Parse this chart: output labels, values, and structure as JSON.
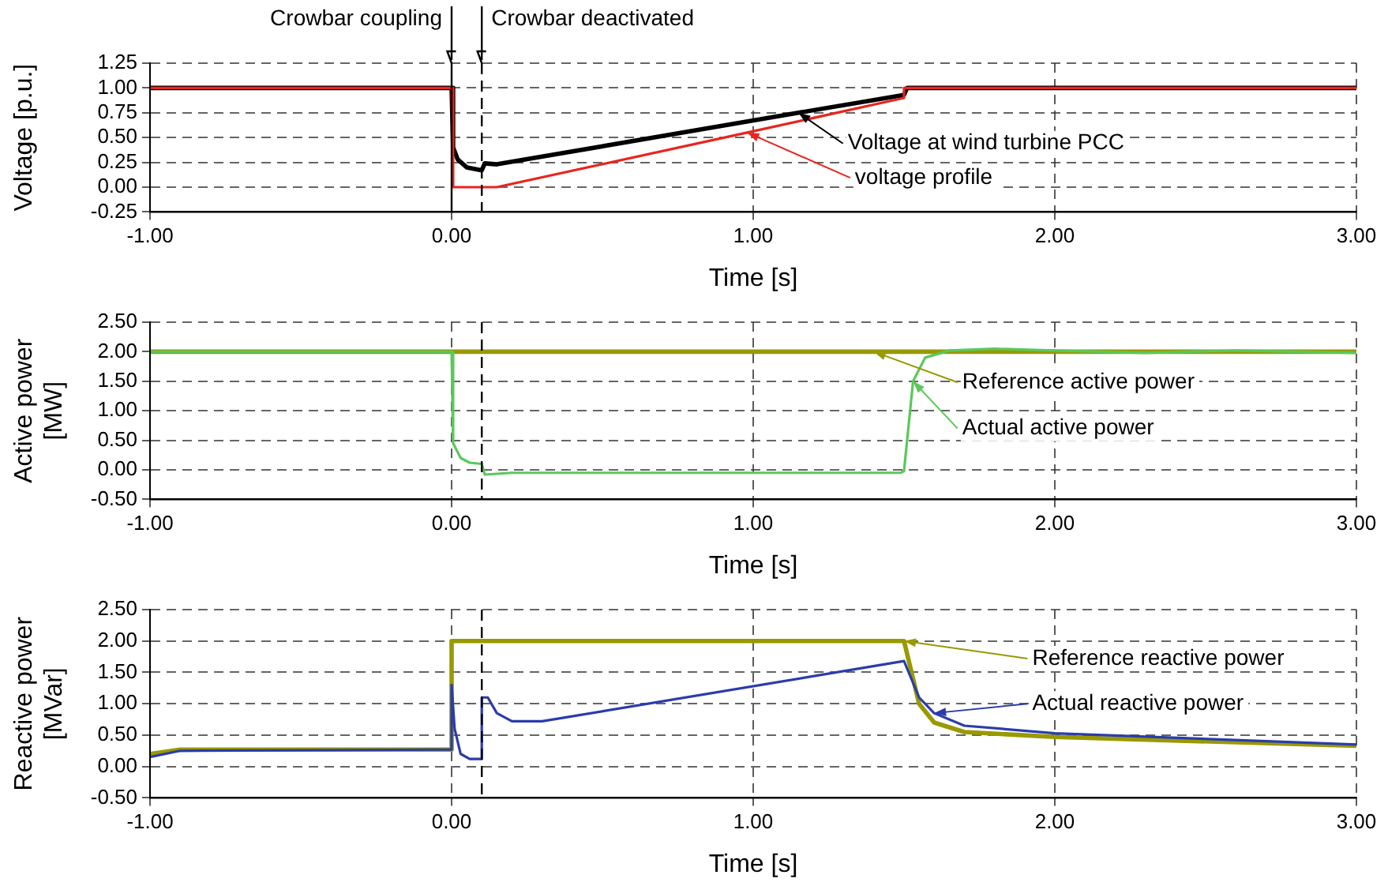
{
  "chart_data": [
    {
      "type": "line",
      "xlabel": "Time [s]",
      "ylabel": "Voltage [p.u.]",
      "grid": true,
      "xlim": [
        -1,
        3
      ],
      "xticks": [
        {
          "value": -1,
          "label": "-1.00"
        },
        {
          "value": 0,
          "label": "0.00"
        },
        {
          "value": 1,
          "label": "1.00"
        },
        {
          "value": 2,
          "label": "2.00"
        },
        {
          "value": 3,
          "label": "3.00"
        }
      ],
      "ylim": [
        -0.25,
        1.25
      ],
      "yticks": [
        {
          "value": -0.25,
          "label": "-0.25"
        },
        {
          "value": 0,
          "label": "0.00"
        },
        {
          "value": 0.25,
          "label": "0.25"
        },
        {
          "value": 0.5,
          "label": "0.50"
        },
        {
          "value": 0.75,
          "label": "0.75"
        },
        {
          "value": 1,
          "label": "1.00"
        },
        {
          "value": 1.25,
          "label": "1.25"
        }
      ],
      "ref_lines": [
        {
          "axis": "x",
          "value": 0,
          "label": "Crowbar coupling"
        },
        {
          "axis": "x",
          "value": 0.1,
          "label": "Crowbar deactivated",
          "line_style": "dashed"
        }
      ],
      "series": [
        {
          "name": "Voltage at wind turbine PCC",
          "color": "#000000",
          "x": [
            -1,
            0,
            0.005,
            0.02,
            0.05,
            0.1,
            0.11,
            0.15,
            1.15,
            1.5,
            1.51,
            3
          ],
          "values": [
            1,
            1,
            0.4,
            0.28,
            0.2,
            0.17,
            0.24,
            0.23,
            0.75,
            0.93,
            1,
            1
          ]
        },
        {
          "name": "voltage profile",
          "color": "#e8251f",
          "x": [
            -1,
            0,
            0.005,
            0.15,
            0.98,
            1.5,
            1.5,
            3
          ],
          "values": [
            1,
            1,
            0,
            0,
            0.55,
            0.9,
            1,
            1
          ]
        }
      ]
    },
    {
      "type": "line",
      "xlabel": "Time [s]",
      "ylabel": "Active power [MW]",
      "grid": true,
      "xlim": [
        -1,
        3
      ],
      "xticks": [
        {
          "value": -1,
          "label": "-1.00"
        },
        {
          "value": 0,
          "label": "0.00"
        },
        {
          "value": 1,
          "label": "1.00"
        },
        {
          "value": 2,
          "label": "2.00"
        },
        {
          "value": 3,
          "label": "3.00"
        }
      ],
      "ylim": [
        -0.5,
        2.5
      ],
      "yticks": [
        {
          "value": -0.5,
          "label": "-0.50"
        },
        {
          "value": 0,
          "label": "0.00"
        },
        {
          "value": 0.5,
          "label": "0.50"
        },
        {
          "value": 1,
          "label": "1.00"
        },
        {
          "value": 1.5,
          "label": "1.50"
        },
        {
          "value": 2,
          "label": "2.00"
        },
        {
          "value": 2.5,
          "label": "2.50"
        }
      ],
      "ref_lines": [
        {
          "axis": "x",
          "value": 0.1,
          "line_style": "dashed"
        }
      ],
      "series": [
        {
          "name": "Reference active power",
          "color": "#999900",
          "x": [
            -1,
            1.4,
            3
          ],
          "values": [
            2,
            2,
            2
          ]
        },
        {
          "name": "Actual active power",
          "color": "#5ac85a",
          "x": [
            -1,
            0,
            0.005,
            0.03,
            0.06,
            0.1,
            0.11,
            0.2,
            1.49,
            1.5,
            1.53,
            1.57,
            1.65,
            1.8,
            2,
            2.3,
            2.6,
            3
          ],
          "values": [
            2,
            2,
            0.45,
            0.2,
            0.12,
            0.1,
            -0.08,
            -0.05,
            -0.05,
            -0.02,
            1.5,
            1.9,
            2.02,
            2.05,
            2.02,
            1.98,
            2.02,
            1.98
          ]
        }
      ]
    },
    {
      "type": "line",
      "xlabel": "Time [s]",
      "ylabel": "Reactive power [MVar]",
      "grid": true,
      "xlim": [
        -1,
        3
      ],
      "xticks": [
        {
          "value": -1,
          "label": "-1.00"
        },
        {
          "value": 0,
          "label": "0.00"
        },
        {
          "value": 1,
          "label": "1.00"
        },
        {
          "value": 2,
          "label": "2.00"
        },
        {
          "value": 3,
          "label": "3.00"
        }
      ],
      "ylim": [
        -0.5,
        2.5
      ],
      "yticks": [
        {
          "value": -0.5,
          "label": "-0.50"
        },
        {
          "value": 0,
          "label": "0.00"
        },
        {
          "value": 0.5,
          "label": "0.50"
        },
        {
          "value": 1,
          "label": "1.00"
        },
        {
          "value": 1.5,
          "label": "1.50"
        },
        {
          "value": 2,
          "label": "2.00"
        },
        {
          "value": 2.5,
          "label": "2.50"
        }
      ],
      "ref_lines": [
        {
          "axis": "x",
          "value": 0.1,
          "line_style": "dashed"
        }
      ],
      "series": [
        {
          "name": "Reference reactive power",
          "color": "#999900",
          "x": [
            -1,
            -0.9,
            0,
            0,
            1.5,
            1.55,
            1.6,
            1.7,
            2,
            3
          ],
          "values": [
            0.2,
            0.27,
            0.27,
            2,
            2,
            1,
            0.7,
            0.55,
            0.47,
            0.33
          ]
        },
        {
          "name": "Actual reactive power",
          "color": "#2b3caa",
          "x": [
            -1,
            -0.9,
            0,
            0,
            0.01,
            0.03,
            0.06,
            0.1,
            0.1,
            0.12,
            0.15,
            0.2,
            0.3,
            1.5,
            1.55,
            1.6,
            1.7,
            2,
            3
          ],
          "values": [
            0.15,
            0.25,
            0.27,
            1.3,
            0.6,
            0.2,
            0.12,
            0.12,
            1.1,
            1.1,
            0.85,
            0.72,
            0.72,
            1.68,
            1.1,
            0.85,
            0.65,
            0.53,
            0.35
          ]
        }
      ]
    }
  ]
}
